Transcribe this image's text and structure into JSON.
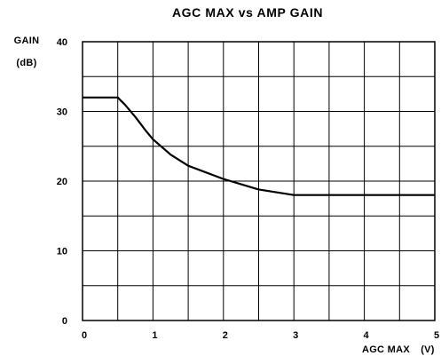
{
  "chart_data": {
    "type": "line",
    "title": "AGC MAX vs AMP GAIN",
    "ylabel": "GAIN",
    "yunit": "(dB)",
    "xlabel": "AGC MAX",
    "xunit": "(V)",
    "xlim": [
      0,
      5
    ],
    "ylim": [
      0,
      40
    ],
    "grid": true,
    "xticks": [
      "0",
      "1",
      "2",
      "3",
      "4",
      "5"
    ],
    "yticks": [
      "0",
      "10",
      "20",
      "30",
      "40"
    ],
    "x_grid_step": 0.5,
    "y_grid_step": 5,
    "series": [
      {
        "x": [
          0,
          0.25,
          0.5,
          0.6,
          0.75,
          0.9,
          1.0,
          1.25,
          1.5,
          2.0,
          2.5,
          2.75,
          3.0,
          4.0,
          5.0
        ],
        "values": [
          32,
          32,
          32,
          31,
          29.2,
          27.2,
          26.0,
          23.8,
          22.2,
          20.3,
          18.8,
          18.4,
          18.0,
          18.0,
          18.0
        ]
      }
    ]
  }
}
